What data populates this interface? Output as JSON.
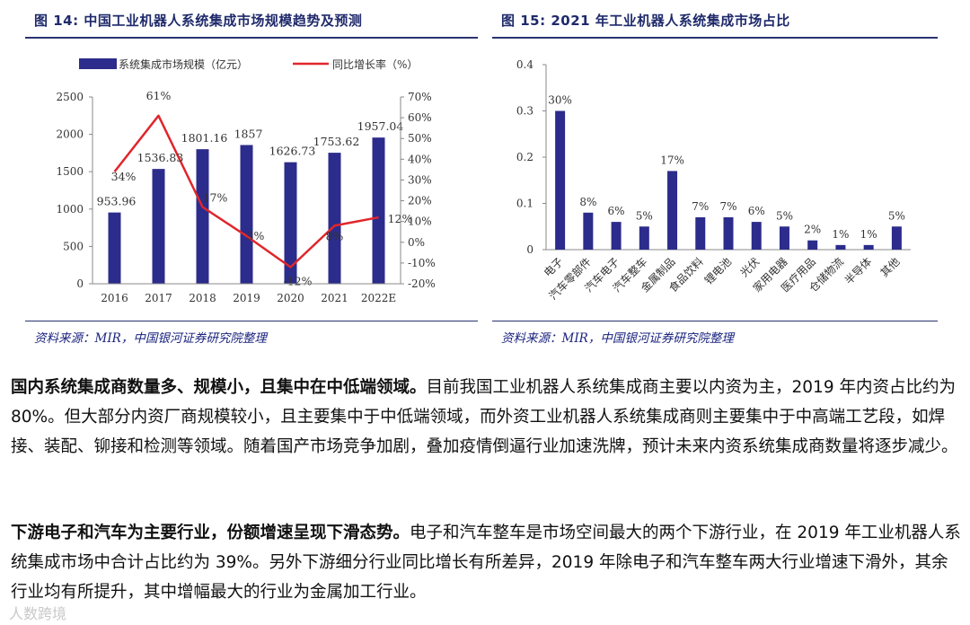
{
  "fig14": {
    "title": "图 14:  中国工业机器人系统集成市场规模趋势及预测",
    "source": "资料来源：MIR，中国银河证券研究院整理",
    "legend_bar": "系统集成市场规模（亿元）",
    "legend_line": "同比增长率（%）"
  },
  "fig15": {
    "title": "图 15:  2021 年工业机器人系统集成市场占比",
    "source": "资料来源：MIR，中国银河证券研究院整理"
  },
  "chart_data": [
    {
      "type": "bar",
      "categories": [
        "2016",
        "2017",
        "2018",
        "2019",
        "2020",
        "2021",
        "2022E"
      ],
      "series": [
        {
          "name": "系统集成市场规模（亿元）",
          "type": "bar",
          "axis": "left",
          "values": [
            953.96,
            1536.83,
            1801.16,
            1857,
            1626.73,
            1753.62,
            1957.04
          ],
          "labels": [
            "953.96",
            "1536.83",
            "1801.16",
            "1857",
            "1626.73",
            "1753.62",
            "1957.04"
          ]
        },
        {
          "name": "同比增长率（%）",
          "type": "line",
          "axis": "right",
          "values": [
            34,
            61,
            17,
            3,
            -12,
            8,
            12
          ],
          "labels": [
            "34%",
            "61%",
            "17%",
            "3%",
            "-12%",
            "8%",
            "12%"
          ]
        }
      ],
      "left_ticks": [
        "0",
        "500",
        "1000",
        "1500",
        "2000",
        "2500"
      ],
      "right_ticks": [
        "-20%",
        "-10%",
        "0%",
        "10%",
        "20%",
        "30%",
        "40%",
        "50%",
        "60%",
        "70%"
      ],
      "ylim": [
        0,
        2500
      ],
      "y2lim": [
        -20,
        70
      ],
      "bar_color": "#2c2c8c",
      "line_color": "#e0262b"
    },
    {
      "type": "bar",
      "categories": [
        "电子",
        "汽车零部件",
        "汽车电子",
        "汽车整车",
        "金属制品",
        "食品饮料",
        "锂电池",
        "光伏",
        "家用电器",
        "医疗用品",
        "仓储物流",
        "半导体",
        "其他"
      ],
      "values": [
        0.3,
        0.08,
        0.06,
        0.05,
        0.17,
        0.07,
        0.07,
        0.06,
        0.05,
        0.02,
        0.01,
        0.01,
        0.05
      ],
      "labels": [
        "30%",
        "8%",
        "6%",
        "5%",
        "17%",
        "7%",
        "7%",
        "6%",
        "5%",
        "2%",
        "1%",
        "1%",
        "5%"
      ],
      "y_ticks": [
        "0",
        "0.1",
        "0.2",
        "0.3",
        "0.4"
      ],
      "ylim": [
        0,
        0.4
      ],
      "bar_color": "#2c2c8c"
    }
  ],
  "para1": {
    "bold": "国内系统集成商数量多、规模小，且集中在中低端领域。",
    "text": "目前我国工业机器人系统集成商主要以内资为主，2019 年内资占比约为 80%。但大部分内资厂商规模较小，且主要集中于中低端领域，而外资工业机器人系统集成商则主要集中于中高端工艺段，如焊接、装配、铆接和检测等领域。随着国产市场竞争加剧，叠加疫情倒逼行业加速洗牌，预计未来内资系统集成商数量将逐步减少。"
  },
  "para2": {
    "bold": "下游电子和汽车为主要行业，份额增速呈现下滑态势。",
    "text": "电子和汽车整车是市场空间最大的两个下游行业，在 2019 年工业机器人系统集成市场中合计占比约为 39%。另外下游细分行业同比增长有所差异，2019 年除电子和汽车整车两大行业增速下滑外，其余行业均有所提升，其中增幅最大的行业为金属加工行业。"
  },
  "watermark": "人数跨境"
}
